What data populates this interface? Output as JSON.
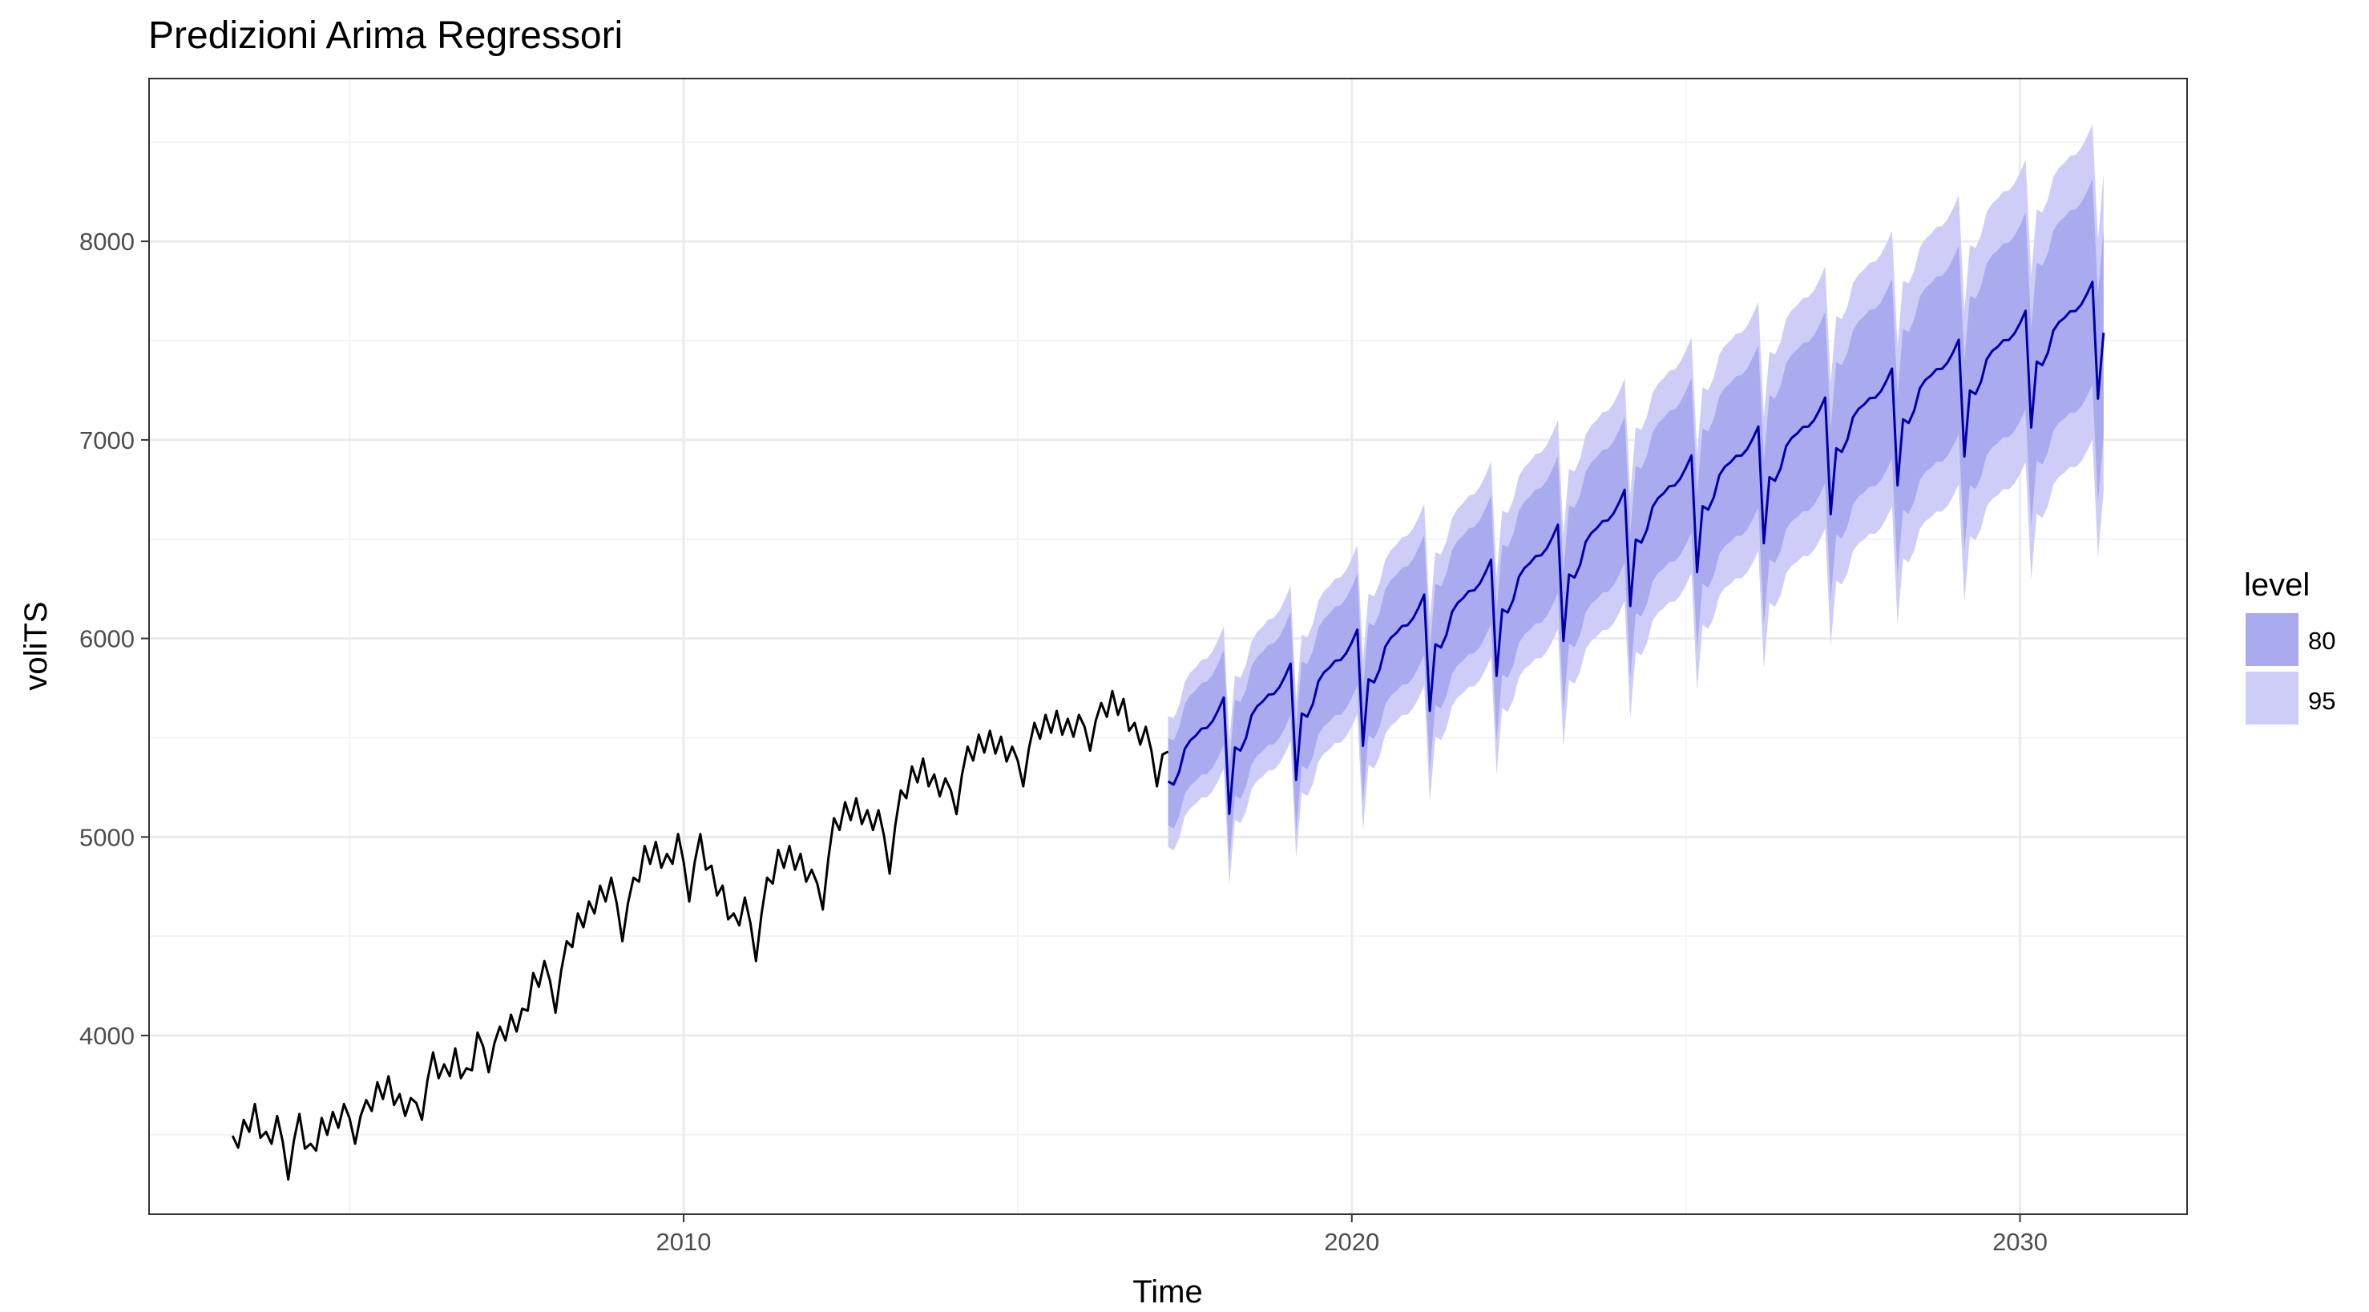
{
  "chart_data": {
    "type": "line",
    "title": "Predizioni Arima Regressori",
    "xlabel": "Time",
    "ylabel": "voliTS",
    "xlim": [
      2002.0,
      2032.5
    ],
    "ylim": [
      3100,
      8820
    ],
    "x_ticks": [
      2010,
      2020,
      2030
    ],
    "x_tick_labels": [
      "2010",
      "2020",
      "2030"
    ],
    "y_ticks": [
      4000,
      5000,
      6000,
      7000,
      8000
    ],
    "y_tick_labels": [
      "4000",
      "5000",
      "6000",
      "7000",
      "8000"
    ],
    "grid": true,
    "legend": {
      "title": "level",
      "position": "right",
      "entries": [
        {
          "label": "80",
          "color": "#aaaaee"
        },
        {
          "label": "95",
          "color": "#cdcdf8"
        }
      ]
    },
    "colors": {
      "history": "#000000",
      "forecast": "#0000aa",
      "band80": "#aaaaee",
      "band95": "#cdcdf8",
      "grid_major": "#ebebeb",
      "grid_minor": "#f4f4f4",
      "panel_border": "#333333"
    },
    "series": [
      {
        "role": "history",
        "start": 2003.25,
        "step": 0.1666667,
        "values": [
          3440,
          3520,
          3600,
          3460,
          3540,
          3480,
          3550,
          3400,
          3530,
          3560,
          3600,
          3660,
          3620,
          3710,
          3740,
          3650,
          3630,
          3780,
          3860,
          3800,
          3880,
          3780,
          3960,
          4020,
          3990,
          4050,
          4080,
          4260,
          4320,
          4320,
          4420,
          4560,
          4620,
          4700,
          4740,
          4680,
          4740,
          4900,
          4920,
          4860,
          4960,
          4880,
          4960,
          4800,
          4700,
          4560,
          4640,
          4580,
          4740,
          4880,
          4900,
          4860,
          4780,
          4840,
          5040,
          5120,
          5140,
          5080,
          5080,
          5020,
          5180,
          5300,
          5340,
          5260,
          5240,
          5320,
          5400,
          5460,
          5480,
          5450,
          5400,
          5460,
          5520,
          5560,
          5580,
          5540,
          5560,
          5640,
          5620,
          5680,
          5640,
          5520,
          5500,
          5460
        ]
      },
      {
        "role": "forecast",
        "start": 2017.25,
        "end": 2031.25,
        "trend_points": [
          [
            2017.25,
            5430
          ],
          [
            2020.0,
            5900
          ],
          [
            2025.0,
            6780
          ],
          [
            2031.25,
            7690
          ]
        ],
        "seasonal_pattern": [
          0,
          -30,
          20,
          120,
          150,
          160,
          180,
          170,
          190,
          230,
          280,
          -320
        ],
        "interval_80_halfwidth": [
          [
            2017.25,
            220
          ],
          [
            2031.25,
            520
          ]
        ],
        "interval_95_halfwidth": [
          [
            2017.25,
            330
          ],
          [
            2031.25,
            800
          ]
        ]
      }
    ]
  }
}
